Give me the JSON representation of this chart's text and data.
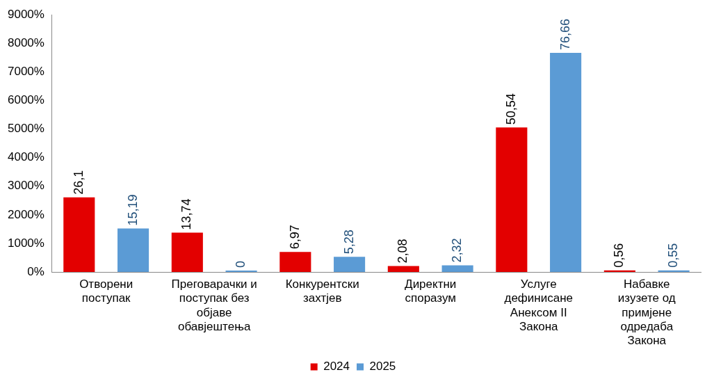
{
  "chart_data": {
    "type": "bar",
    "categories": [
      "Отворени поступак",
      "Преговарачки и поступак без објаве обавјештења",
      "Конкурентски захтјев",
      "Директни споразум",
      "Услуге дефинисане Анексом II Закона",
      "Набавке изузете од примјене одредаба Закона"
    ],
    "series": [
      {
        "name": "2024",
        "color": "#e30000",
        "values": [
          26.1,
          13.74,
          6.97,
          2.08,
          50.54,
          0.56
        ],
        "value_labels": [
          "26,1",
          "13,74",
          "6,97",
          "2,08",
          "50,54",
          "0,56"
        ]
      },
      {
        "name": "2025",
        "color": "#5b9bd5",
        "values": [
          15.19,
          0,
          5.28,
          2.32,
          76.66,
          0.55
        ],
        "value_labels": [
          "15,19",
          "0",
          "5,28",
          "2,32",
          "76,66",
          "0,55"
        ]
      }
    ],
    "ylim": [
      0,
      90
    ],
    "yticks": [
      {
        "value": 0,
        "label": "0%"
      },
      {
        "value": 10,
        "label": "1000%"
      },
      {
        "value": 20,
        "label": "2000%"
      },
      {
        "value": 30,
        "label": "3000%"
      },
      {
        "value": 40,
        "label": "4000%"
      },
      {
        "value": 50,
        "label": "5000%"
      },
      {
        "value": 60,
        "label": "6000%"
      },
      {
        "value": 70,
        "label": "7000%"
      },
      {
        "value": 80,
        "label": "8000%"
      },
      {
        "value": 90,
        "label": "9000%"
      }
    ],
    "grid": false,
    "legend": "bottom"
  }
}
